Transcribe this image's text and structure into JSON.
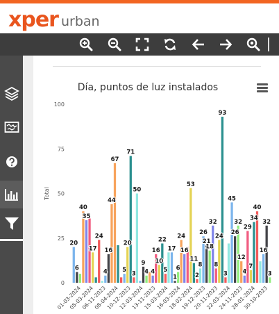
{
  "brand": {
    "name_bold": "xper",
    "name_light": "urban",
    "accent": "#e9551e"
  },
  "toolbar": {
    "tools": [
      {
        "name": "zoom-in-icon"
      },
      {
        "name": "zoom-out-icon"
      },
      {
        "name": "fullscreen-icon"
      },
      {
        "name": "refresh-icon"
      },
      {
        "name": "arrow-left-icon"
      },
      {
        "name": "arrow-right-icon"
      },
      {
        "name": "zoom-extent-icon"
      }
    ]
  },
  "sidebar": {
    "items": [
      {
        "name": "layers-icon"
      },
      {
        "name": "map-icon"
      },
      {
        "name": "help-icon"
      },
      {
        "name": "chart-icon",
        "active": true
      },
      {
        "name": "filter-icon"
      }
    ]
  },
  "chart_data": {
    "type": "bar",
    "title": "Día, puntos de luz instalados",
    "ylabel": "Total",
    "ylim": [
      0,
      100
    ],
    "yticks": [
      0,
      25,
      50,
      75,
      100
    ],
    "grid": false,
    "x_tick_labels": [
      "01-03-2024",
      "05-03-2024",
      "06-11-2023",
      "08-04-2024",
      "10-12-2023",
      "12-03-2024",
      "13-11-2023",
      "15-03-2024",
      "16-03-2024",
      "18-02-2024",
      "19-12-2023",
      "20-11-2023",
      "22-03-2024",
      "24-11-2023",
      "28-01-2024",
      "30-10-2023"
    ],
    "bars": [
      {
        "v": 20,
        "c": "#7cb5ec"
      },
      {
        "v": 6,
        "c": "#434348"
      },
      {
        "v": 5,
        "c": "#90ed7d"
      },
      {
        "v": 40,
        "c": "#f7a35c"
      },
      {
        "v": 35,
        "c": "#8085e9"
      },
      {
        "v": 36,
        "c": "#f15c80"
      },
      {
        "v": 17,
        "c": "#e4d354"
      },
      {
        "v": 3,
        "c": "#2b908f"
      },
      {
        "v": 24,
        "c": "#f45b5b"
      },
      {
        "v": 1,
        "c": "#91e8e1"
      },
      {
        "v": 4,
        "c": "#7cb5ec"
      },
      {
        "v": 16,
        "c": "#434348"
      },
      {
        "v": 44,
        "c": "#f7a35c"
      },
      {
        "v": 67,
        "c": "#f7a35c"
      },
      {
        "v": 21,
        "c": "#2b908f"
      },
      {
        "v": 3,
        "c": "#f45b5b"
      },
      {
        "v": 5,
        "c": "#7cb5ec"
      },
      {
        "v": 20,
        "c": "#e4d354"
      },
      {
        "v": 71,
        "c": "#2b908f"
      },
      {
        "v": 3,
        "c": "#f45b5b"
      },
      {
        "v": 50,
        "c": "#91e8e1"
      },
      {
        "v": 1,
        "c": "#7cb5ec"
      },
      {
        "v": 9,
        "c": "#434348"
      },
      {
        "v": 4,
        "c": "#90ed7d"
      },
      {
        "v": 6,
        "c": "#f7a35c"
      },
      {
        "v": 4,
        "c": "#8085e9"
      },
      {
        "v": 16,
        "c": "#f15c80"
      },
      {
        "v": 10,
        "c": "#e4d354"
      },
      {
        "v": 22,
        "c": "#2b908f"
      },
      {
        "v": 5,
        "c": "#f45b5b"
      },
      {
        "v": 17,
        "c": "#91e8e1"
      },
      {
        "v": 17,
        "c": "#7cb5ec"
      },
      {
        "v": 1,
        "c": "#434348"
      },
      {
        "v": 6,
        "c": "#90ed7d"
      },
      {
        "v": 24,
        "c": "#f7a35c"
      },
      {
        "v": 16,
        "c": "#8085e9"
      },
      {
        "v": 20,
        "c": "#f15c80"
      },
      {
        "v": 53,
        "c": "#e4d354"
      },
      {
        "v": 11,
        "c": "#2b908f"
      },
      {
        "v": 2,
        "c": "#f45b5b"
      },
      {
        "v": 8,
        "c": "#91e8e1"
      },
      {
        "v": 26,
        "c": "#7cb5ec"
      },
      {
        "v": 21,
        "c": "#434348"
      },
      {
        "v": 18,
        "c": "#90ed7d"
      },
      {
        "v": 32,
        "c": "#8085e9"
      },
      {
        "v": 8,
        "c": "#f15c80"
      },
      {
        "v": 24,
        "c": "#e4d354"
      },
      {
        "v": 93,
        "c": "#2b908f"
      },
      {
        "v": 3,
        "c": "#f45b5b"
      },
      {
        "v": 22,
        "c": "#91e8e1"
      },
      {
        "v": 45,
        "c": "#7cb5ec"
      },
      {
        "v": 26,
        "c": "#434348"
      },
      {
        "v": 32,
        "c": "#90ed7d"
      },
      {
        "v": 12,
        "c": "#f7a35c"
      },
      {
        "v": 4,
        "c": "#8085e9"
      },
      {
        "v": 29,
        "c": "#f15c80"
      },
      {
        "v": 7,
        "c": "#e4d354"
      },
      {
        "v": 34,
        "c": "#2b908f"
      },
      {
        "v": 40,
        "c": "#f45b5b"
      },
      {
        "v": 12,
        "c": "#91e8e1"
      },
      {
        "v": 16,
        "c": "#7cb5ec"
      },
      {
        "v": 32,
        "c": "#434348"
      },
      {
        "v": 3,
        "c": "#90ed7d"
      }
    ],
    "data_labels": [
      {
        "i": 0,
        "v": 20
      },
      {
        "i": 1,
        "v": 6
      },
      {
        "i": 3,
        "v": 40
      },
      {
        "i": 4,
        "v": 35
      },
      {
        "i": 6,
        "v": 17
      },
      {
        "i": 8,
        "v": 24
      },
      {
        "i": 10,
        "v": 4
      },
      {
        "i": 11,
        "v": 16
      },
      {
        "i": 12,
        "v": 44
      },
      {
        "i": 13,
        "v": 67
      },
      {
        "i": 16,
        "v": 5
      },
      {
        "i": 17,
        "v": 20
      },
      {
        "i": 18,
        "v": 71
      },
      {
        "i": 19,
        "v": 3
      },
      {
        "i": 20,
        "v": 50
      },
      {
        "i": 22,
        "v": 9
      },
      {
        "i": 23,
        "v": 4
      },
      {
        "i": 25,
        "v": 4
      },
      {
        "i": 26,
        "v": 16
      },
      {
        "i": 27,
        "v": 10
      },
      {
        "i": 28,
        "v": 22
      },
      {
        "i": 29,
        "v": 5
      },
      {
        "i": 31,
        "v": 17
      },
      {
        "i": 32,
        "v": 1
      },
      {
        "i": 33,
        "v": 6
      },
      {
        "i": 34,
        "v": 24
      },
      {
        "i": 35,
        "v": 16
      },
      {
        "i": 37,
        "v": 53
      },
      {
        "i": 38,
        "v": 11
      },
      {
        "i": 39,
        "v": 2
      },
      {
        "i": 40,
        "v": 8
      },
      {
        "i": 41,
        "v": 26
      },
      {
        "i": 42,
        "v": 21
      },
      {
        "i": 43,
        "v": 18
      },
      {
        "i": 44,
        "v": 32
      },
      {
        "i": 45,
        "v": 8
      },
      {
        "i": 46,
        "v": 24
      },
      {
        "i": 47,
        "v": 93
      },
      {
        "i": 48,
        "v": 3
      },
      {
        "i": 50,
        "v": 45
      },
      {
        "i": 51,
        "v": 26
      },
      {
        "i": 52,
        "v": 32
      },
      {
        "i": 53,
        "v": 12
      },
      {
        "i": 54,
        "v": 4
      },
      {
        "i": 55,
        "v": 29
      },
      {
        "i": 56,
        "v": 7
      },
      {
        "i": 57,
        "v": 34
      },
      {
        "i": 58,
        "v": 40
      },
      {
        "i": 60,
        "v": 16
      },
      {
        "i": 61,
        "v": 32
      },
      {
        "i": 62,
        "v": 3
      }
    ]
  }
}
